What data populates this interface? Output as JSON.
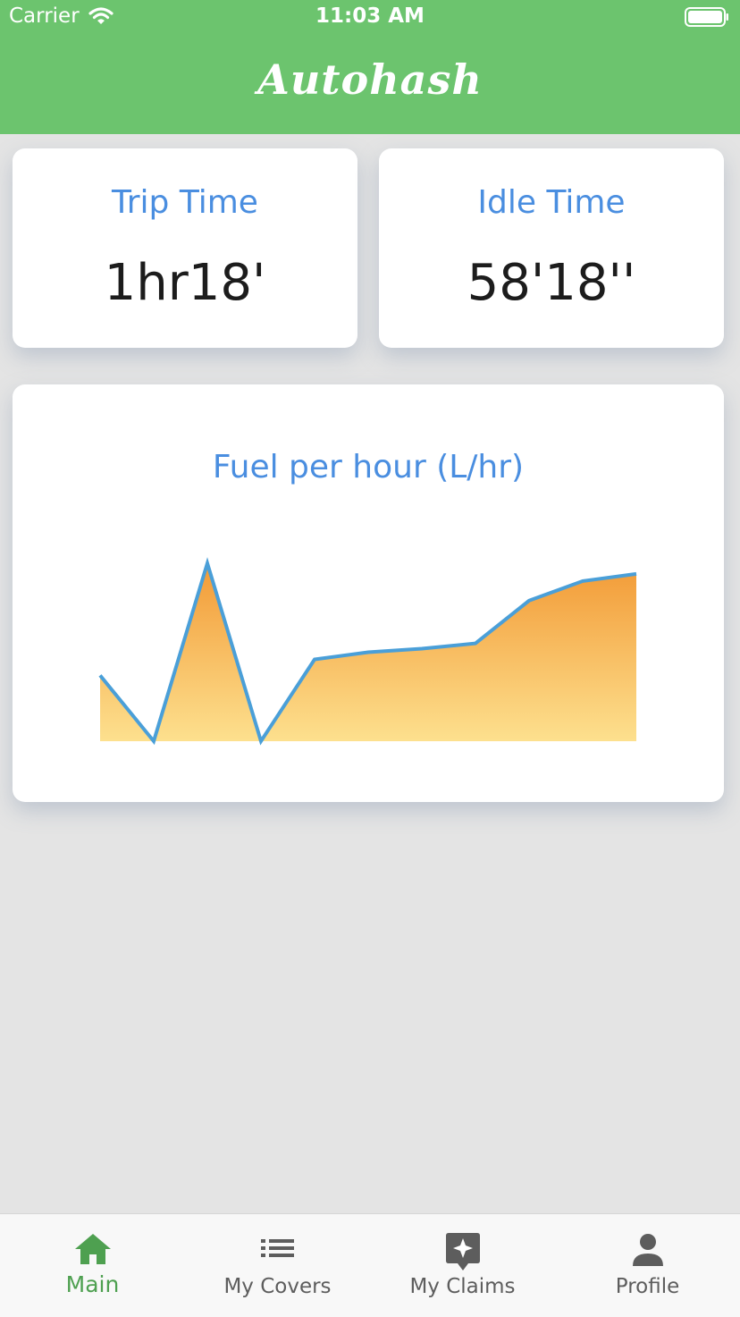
{
  "status_bar": {
    "carrier": "Carrier",
    "time": "11:03 AM"
  },
  "header": {
    "title": "Autohash",
    "background_color": "#6cc46e"
  },
  "stats": {
    "trip_time": {
      "label": "Trip Time",
      "value": "1hr18'"
    },
    "idle_time": {
      "label": "Idle Time",
      "value": "58'18''"
    }
  },
  "chart_data": {
    "type": "area",
    "title": "Fuel per hour (L/hr)",
    "x": [
      0,
      1,
      2,
      3,
      4,
      5,
      6,
      7,
      8,
      9,
      10
    ],
    "values": [
      3.7,
      0,
      10,
      0,
      4.6,
      5,
      5.2,
      5.5,
      7.9,
      9,
      9.4
    ],
    "ylim": [
      0,
      10
    ],
    "grid": false,
    "line_color": "#4a9fd8",
    "fill_colors": [
      "#f29a36",
      "#fde08e"
    ]
  },
  "tabbar": {
    "active_color": "#4ea050",
    "tabs": [
      {
        "label": "Main",
        "icon": "home-icon",
        "active": true
      },
      {
        "label": "My Covers",
        "icon": "list-icon",
        "active": false
      },
      {
        "label": "My Claims",
        "icon": "claims-sparkle-icon",
        "active": false
      },
      {
        "label": "Profile",
        "icon": "person-icon",
        "active": false
      }
    ]
  }
}
